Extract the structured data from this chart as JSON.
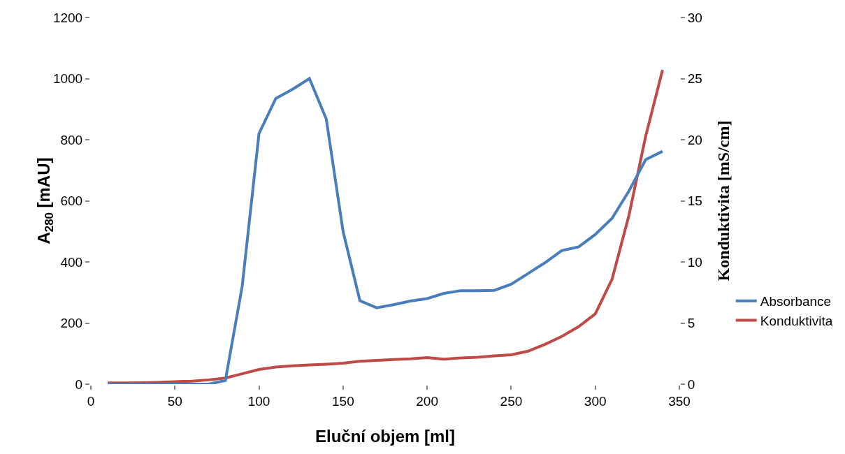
{
  "chart_data": {
    "type": "line",
    "xlabel": "Eluční objem [ml]",
    "ylabel": "A$_{280}$ [mAU]",
    "y2label": "Konduktivita [mS/cm]",
    "x": [
      10,
      20,
      30,
      40,
      50,
      60,
      70,
      80,
      90,
      100,
      110,
      120,
      130,
      140,
      150,
      160,
      170,
      180,
      190,
      200,
      210,
      220,
      230,
      240,
      250,
      260,
      270,
      280,
      290,
      300,
      310,
      320,
      330,
      340
    ],
    "series": [
      {
        "name": "Absorbance",
        "color": "#4a7ebb",
        "values": [
          0,
          0,
          0,
          0,
          0,
          0,
          0,
          12,
          320,
          820,
          935,
          965,
          1000,
          868,
          500,
          273,
          250,
          260,
          272,
          280,
          297,
          306,
          306,
          307,
          327,
          362,
          397,
          437,
          449,
          490,
          543,
          632,
          735,
          762
        ]
      },
      {
        "name": "Konduktivita",
        "color": "#be4b48",
        "axis": "y2",
        "values": [
          0.1,
          0.1,
          0.12,
          0.15,
          0.2,
          0.25,
          0.35,
          0.5,
          0.85,
          1.2,
          1.4,
          1.5,
          1.57,
          1.63,
          1.72,
          1.87,
          1.95,
          2.02,
          2.07,
          2.17,
          2.05,
          2.15,
          2.2,
          2.32,
          2.4,
          2.7,
          3.25,
          3.9,
          4.7,
          5.75,
          8.6,
          13.8,
          20.3,
          25.7
        ]
      }
    ],
    "xlim": [
      0,
      350
    ],
    "xticks": [
      0,
      50,
      100,
      150,
      200,
      250,
      300,
      350
    ],
    "ylim": [
      0,
      1200
    ],
    "yticks": [
      0,
      200,
      400,
      600,
      800,
      1000,
      1200
    ],
    "y2lim": [
      0,
      30
    ],
    "y2ticks": [
      0,
      5,
      10,
      15,
      20,
      25,
      30
    ],
    "grid": false,
    "legend": "right",
    "marker": "none",
    "line_style": "solid"
  }
}
